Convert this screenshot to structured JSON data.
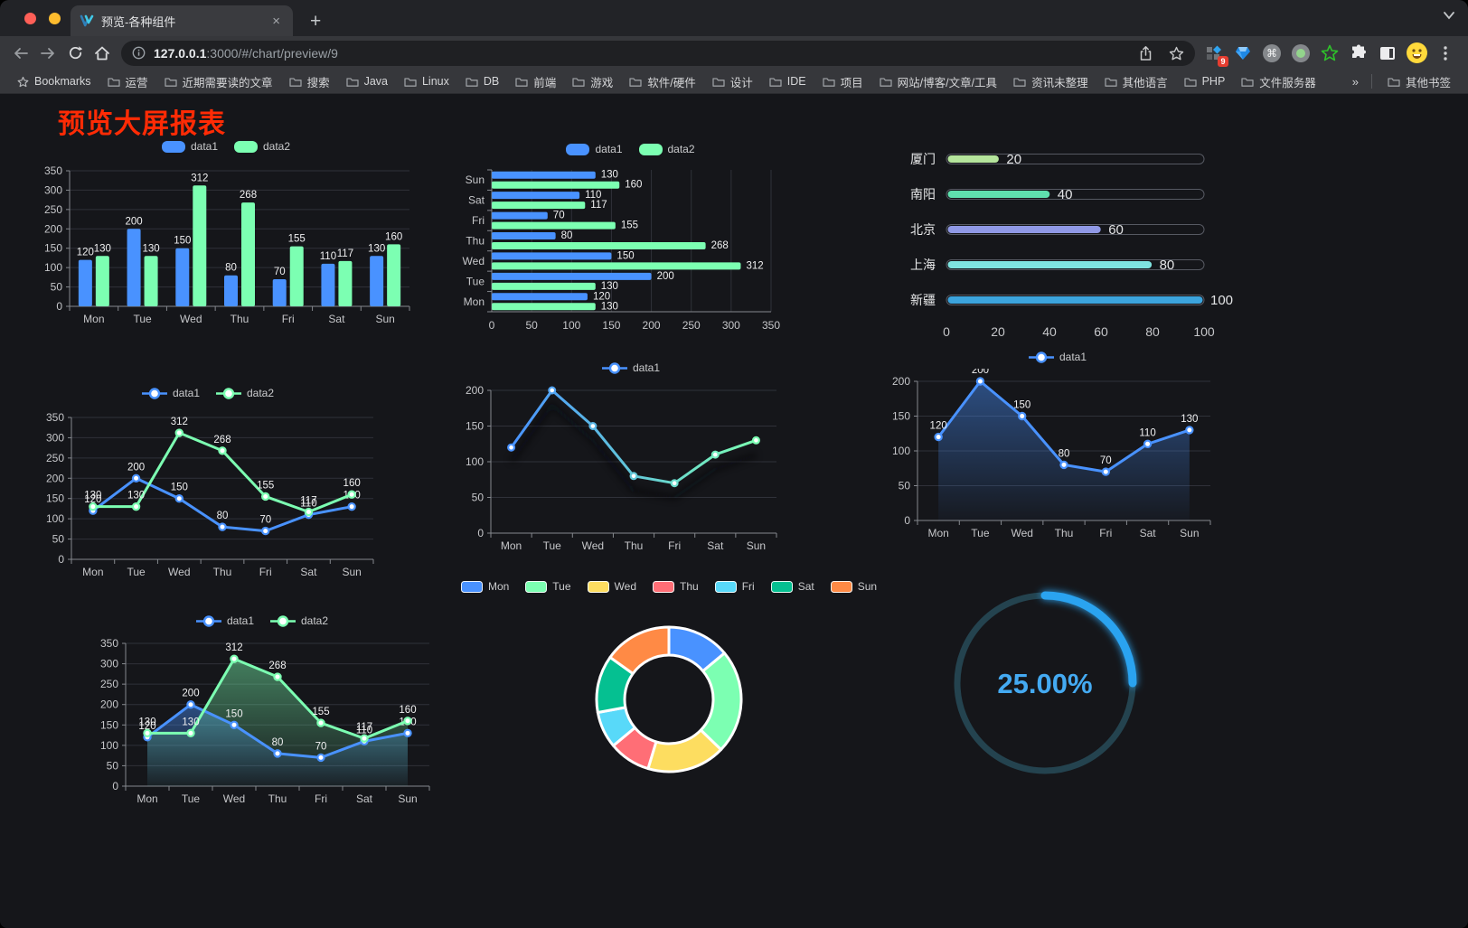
{
  "browser": {
    "tab": {
      "title": "预览-各种组件",
      "close_glyph": "×",
      "new_tab_glyph": "+"
    },
    "toolbar": {
      "url_host": "127.0.0.1",
      "url_rest": ":3000/#/chart/preview/9"
    },
    "extensions": {
      "badge_count": "9"
    },
    "bookmarks": {
      "root_label": "Bookmarks",
      "items": [
        "运营",
        "近期需要读的文章",
        "搜索",
        "Java",
        "Linux",
        "DB",
        "前端",
        "游戏",
        "软件/硬件",
        "设计",
        "IDE",
        "项目",
        "网站/博客/文章/工具",
        "资讯未整理",
        "其他语言",
        "PHP",
        "文件服务器"
      ],
      "overflow_glyph": "»",
      "other_label": "其他书签"
    }
  },
  "page": {
    "title": "预览大屏报表",
    "title_color": "#ff2b05"
  },
  "chart_data": [
    {
      "type": "bar",
      "title": "grouped vertical bar",
      "categories": [
        "Mon",
        "Tue",
        "Wed",
        "Thu",
        "Fri",
        "Sat",
        "Sun"
      ],
      "series": [
        {
          "name": "data1",
          "color": "#4992ff",
          "values": [
            120,
            200,
            150,
            80,
            70,
            110,
            130
          ]
        },
        {
          "name": "data2",
          "color": "#7cffb2",
          "values": [
            130,
            130,
            312,
            268,
            155,
            117,
            160
          ]
        }
      ],
      "ylim": [
        0,
        350
      ],
      "ystep": 50,
      "show_labels": true,
      "legend_position": "top",
      "grid": true
    },
    {
      "type": "hbar",
      "title": "grouped horizontal bar",
      "categories": [
        "Mon",
        "Tue",
        "Wed",
        "Thu",
        "Fri",
        "Sat",
        "Sun"
      ],
      "series": [
        {
          "name": "data1",
          "color": "#4992ff",
          "values": [
            120,
            200,
            150,
            80,
            70,
            110,
            130
          ]
        },
        {
          "name": "data2",
          "color": "#7cffb2",
          "values": [
            130,
            130,
            312,
            268,
            155,
            117,
            160
          ]
        }
      ],
      "xlim": [
        0,
        350
      ],
      "xstep": 50,
      "show_labels": true,
      "legend_position": "top",
      "grid": true
    },
    {
      "type": "progress",
      "title": "city progress bars",
      "max": 100,
      "axis_ticks": [
        0,
        20,
        40,
        60,
        80,
        100
      ],
      "items": [
        {
          "label": "厦门",
          "value": 20,
          "color": "#b5e59c"
        },
        {
          "label": "南阳",
          "value": 40,
          "color": "#5fe0ae"
        },
        {
          "label": "北京",
          "value": 60,
          "color": "#9099e6"
        },
        {
          "label": "上海",
          "value": 80,
          "color": "#7fe3e0"
        },
        {
          "label": "新疆",
          "value": 100,
          "color": "#3ca4dd"
        }
      ]
    },
    {
      "type": "line",
      "title": "two series line",
      "categories": [
        "Mon",
        "Tue",
        "Wed",
        "Thu",
        "Fri",
        "Sat",
        "Sun"
      ],
      "series": [
        {
          "name": "data1",
          "color": "#4992ff",
          "values": [
            120,
            200,
            150,
            80,
            70,
            110,
            130
          ]
        },
        {
          "name": "data2",
          "color": "#7cffb2",
          "values": [
            130,
            130,
            312,
            268,
            155,
            117,
            160
          ]
        }
      ],
      "ylim": [
        0,
        350
      ],
      "ystep": 50,
      "show_labels": true,
      "legend_position": "top",
      "grid": true
    },
    {
      "type": "line-gradient",
      "title": "gradient line",
      "categories": [
        "Mon",
        "Tue",
        "Wed",
        "Thu",
        "Fri",
        "Sat",
        "Sun"
      ],
      "series": [
        {
          "name": "data1",
          "values": [
            120,
            200,
            150,
            80,
            70,
            110,
            130
          ]
        }
      ],
      "gradient": [
        "#4992ff",
        "#7cffb2"
      ],
      "ylim": [
        0,
        200
      ],
      "ystep": 50,
      "show_labels": false,
      "legend_position": "top",
      "grid": true
    },
    {
      "type": "area",
      "title": "single series area",
      "categories": [
        "Mon",
        "Tue",
        "Wed",
        "Thu",
        "Fri",
        "Sat",
        "Sun"
      ],
      "series": [
        {
          "name": "data1",
          "color": "#4992ff",
          "values": [
            120,
            200,
            150,
            80,
            70,
            110,
            130
          ]
        }
      ],
      "ylim": [
        0,
        200
      ],
      "ystep": 50,
      "show_labels": true,
      "legend_position": "top",
      "grid": true
    },
    {
      "type": "line-area2",
      "title": "two series area line",
      "categories": [
        "Mon",
        "Tue",
        "Wed",
        "Thu",
        "Fri",
        "Sat",
        "Sun"
      ],
      "series": [
        {
          "name": "data1",
          "color": "#4992ff",
          "values": [
            120,
            200,
            150,
            80,
            70,
            110,
            130
          ]
        },
        {
          "name": "data2",
          "color": "#7cffb2",
          "values": [
            130,
            130,
            312,
            268,
            155,
            117,
            160
          ]
        }
      ],
      "ylim": [
        0,
        350
      ],
      "ystep": 50,
      "show_labels": true,
      "legend_position": "top",
      "grid": true
    },
    {
      "type": "pie",
      "title": "weekday donut",
      "legend_position": "top",
      "items": [
        {
          "label": "Mon",
          "value": 120,
          "color": "#4992ff"
        },
        {
          "label": "Tue",
          "value": 200,
          "color": "#7cffb2"
        },
        {
          "label": "Wed",
          "value": 150,
          "color": "#fddd60"
        },
        {
          "label": "Thu",
          "value": 80,
          "color": "#ff6e76"
        },
        {
          "label": "Fri",
          "value": 70,
          "color": "#58d9f9"
        },
        {
          "label": "Sat",
          "value": 110,
          "color": "#05c091"
        },
        {
          "label": "Sun",
          "value": 130,
          "color": "#ff8a45"
        }
      ]
    },
    {
      "type": "gauge",
      "title": "percent gauge",
      "value": 25,
      "max": 100,
      "text": "25.00%",
      "color": "#2aa3f0",
      "text_color": "#44aaf2",
      "track_color": "#24434f"
    }
  ]
}
